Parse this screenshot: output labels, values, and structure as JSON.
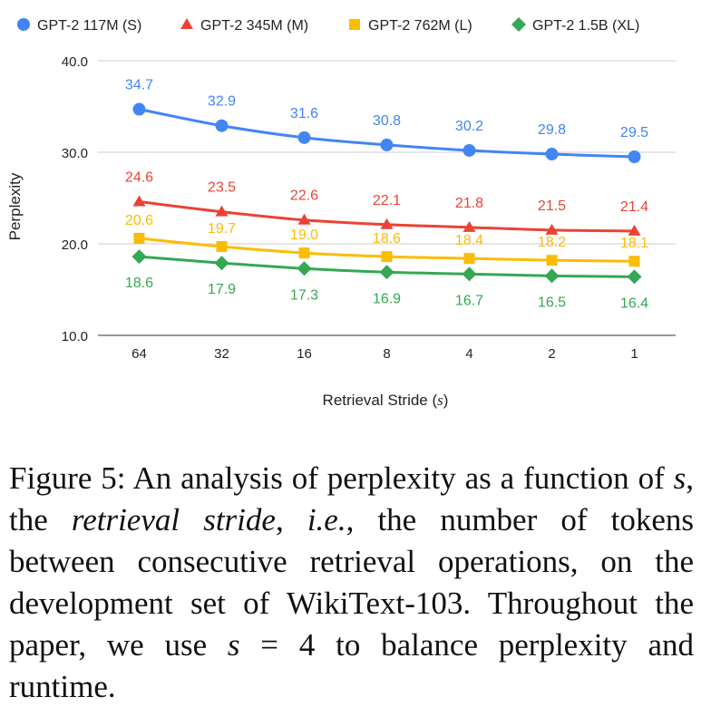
{
  "chart_data": {
    "type": "line",
    "xlabel_prefix": "Retrieval Stride (",
    "xlabel_var": "s",
    "xlabel_suffix": ")",
    "ylabel": "Perplexity",
    "categories": [
      "64",
      "32",
      "16",
      "8",
      "4",
      "2",
      "1"
    ],
    "ylim": [
      10,
      40
    ],
    "yticks": [
      "10.0",
      "20.0",
      "30.0",
      "40.0"
    ],
    "grid": true,
    "legend_position": "top",
    "series": [
      {
        "name": "GPT-2 117M (S)",
        "color": "#4285F4",
        "marker": "circle",
        "values": [
          34.7,
          32.9,
          31.6,
          30.8,
          30.2,
          29.8,
          29.5
        ],
        "labels": [
          "34.7",
          "32.9",
          "31.6",
          "30.8",
          "30.2",
          "29.8",
          "29.5"
        ]
      },
      {
        "name": "GPT-2 345M (M)",
        "color": "#EA4335",
        "marker": "triangle",
        "values": [
          24.6,
          23.5,
          22.6,
          22.1,
          21.8,
          21.5,
          21.4
        ],
        "labels": [
          "24.6",
          "23.5",
          "22.6",
          "22.1",
          "21.8",
          "21.5",
          "21.4"
        ]
      },
      {
        "name": "GPT-2 762M (L)",
        "color": "#FBBC04",
        "marker": "square",
        "values": [
          20.6,
          19.7,
          19.0,
          18.6,
          18.4,
          18.2,
          18.1
        ],
        "labels": [
          "20.6",
          "19.7",
          "19.0",
          "18.6",
          "18.4",
          "18.2",
          "18.1"
        ]
      },
      {
        "name": "GPT-2 1.5B (XL)",
        "color": "#34A853",
        "marker": "diamond",
        "values": [
          18.6,
          17.9,
          17.3,
          16.9,
          16.7,
          16.5,
          16.4
        ],
        "labels": [
          "18.6",
          "17.9",
          "17.3",
          "16.9",
          "16.7",
          "16.5",
          "16.4"
        ]
      }
    ]
  },
  "caption": {
    "part1": "Figure 5: An analysis of perplexity as a function of ",
    "var1": "s",
    "part2": ", the ",
    "italic1": "retrieval stride",
    "part3": ", ",
    "italic2": "i.e.",
    "part4": ", the number of tokens between consecutive retrieval operations, on the development set of WikiText-103. Throughout the paper, we use ",
    "var2": "s",
    "equals": " = 4 ",
    "part5": "to balance perplexity and runtime."
  }
}
